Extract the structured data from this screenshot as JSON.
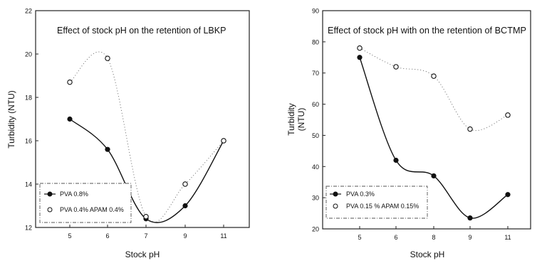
{
  "chart_data": [
    {
      "type": "scatter",
      "title": "Effect of stock pH on the retention of LBKP",
      "xlabel": "Stock pH",
      "ylabel": "Turbidity (NTU)",
      "x_categories": [
        "5",
        "6",
        "7",
        "9",
        "11"
      ],
      "ylim": [
        12,
        22
      ],
      "yticks": [
        "12",
        "14",
        "16",
        "18",
        "20",
        "22"
      ],
      "legend_position": "bottom-left",
      "grid": false,
      "series": [
        {
          "name": "PVA 0.8%",
          "marker": "filled-circle",
          "line": "solid",
          "x": [
            "5",
            "6",
            "7",
            "9",
            "11"
          ],
          "values": [
            17.0,
            15.6,
            12.4,
            13.0,
            16.0
          ]
        },
        {
          "name": "PVA 0.4% APAM 0.4%",
          "marker": "open-circle",
          "line": "dotted",
          "x": [
            "5",
            "6",
            "7",
            "9",
            "11"
          ],
          "values": [
            18.7,
            19.8,
            12.5,
            14.0,
            16.0
          ]
        }
      ]
    },
    {
      "type": "scatter",
      "title": "Effect of stock pH with on the retention of BCTMP",
      "xlabel": "Stock pH",
      "ylabel_lines": [
        "Turbidity",
        "(NTU)"
      ],
      "x_categories": [
        "5",
        "6",
        "8",
        "9",
        "11"
      ],
      "ylim": [
        20,
        90
      ],
      "yticks": [
        "20",
        "30",
        "40",
        "50",
        "60",
        "70",
        "80",
        "90"
      ],
      "legend_position": "bottom-left",
      "grid": false,
      "series": [
        {
          "name": "PVA 0.3%",
          "marker": "filled-circle",
          "line": "solid",
          "x": [
            "5",
            "6",
            "8",
            "9",
            "11"
          ],
          "values": [
            75.0,
            42.0,
            37.0,
            23.5,
            31.0
          ]
        },
        {
          "name": "PVA 0.15 % APAM 0.15%",
          "marker": "open-circle",
          "line": "dotted",
          "x": [
            "5",
            "6",
            "8",
            "9",
            "11"
          ],
          "values": [
            78.0,
            72.0,
            69.0,
            52.0,
            56.5
          ]
        }
      ]
    }
  ]
}
